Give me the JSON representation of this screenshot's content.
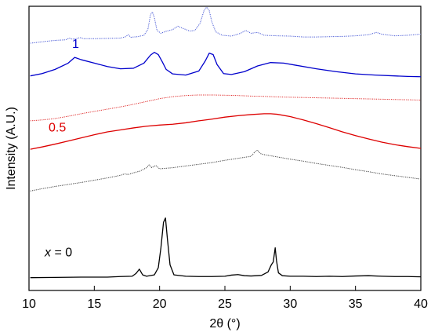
{
  "chart_data": {
    "type": "line",
    "title": "",
    "xlabel": "2θ (°)",
    "ylabel": "Intensity (A.U.)",
    "xlim": [
      10,
      40
    ],
    "x_ticks": [
      10,
      15,
      20,
      25,
      30,
      35,
      40
    ],
    "y_ticks_labeled": false,
    "grid": false,
    "legend": "none",
    "series": [
      {
        "color": "#4a5bd6",
        "style": "dotted",
        "points": [
          [
            10.1,
            0.87
          ],
          [
            11,
            0.875
          ],
          [
            12,
            0.88
          ],
          [
            12.8,
            0.882
          ],
          [
            13.1,
            0.888
          ],
          [
            13.3,
            0.884
          ],
          [
            13.6,
            0.886
          ],
          [
            13.9,
            0.89
          ],
          [
            14.2,
            0.886
          ],
          [
            15,
            0.886
          ],
          [
            16,
            0.887
          ],
          [
            17,
            0.888
          ],
          [
            17.4,
            0.893
          ],
          [
            17.6,
            0.9
          ],
          [
            17.8,
            0.891
          ],
          [
            18.3,
            0.893
          ],
          [
            18.8,
            0.898
          ],
          [
            19.1,
            0.918
          ],
          [
            19.3,
            0.97
          ],
          [
            19.45,
            0.98
          ],
          [
            19.6,
            0.96
          ],
          [
            19.8,
            0.915
          ],
          [
            20.1,
            0.905
          ],
          [
            20.5,
            0.912
          ],
          [
            21.0,
            0.918
          ],
          [
            21.4,
            0.93
          ],
          [
            21.8,
            0.922
          ],
          [
            22.3,
            0.913
          ],
          [
            22.7,
            0.915
          ],
          [
            23.1,
            0.94
          ],
          [
            23.4,
            0.985
          ],
          [
            23.6,
            0.997
          ],
          [
            23.8,
            0.985
          ],
          [
            24.0,
            0.945
          ],
          [
            24.3,
            0.91
          ],
          [
            24.8,
            0.898
          ],
          [
            25.5,
            0.895
          ],
          [
            26.2,
            0.905
          ],
          [
            26.6,
            0.915
          ],
          [
            27.0,
            0.905
          ],
          [
            27.5,
            0.908
          ],
          [
            28.0,
            0.898
          ],
          [
            29,
            0.896
          ],
          [
            30,
            0.895
          ],
          [
            31,
            0.892
          ],
          [
            32,
            0.892
          ],
          [
            33,
            0.893
          ],
          [
            34,
            0.894
          ],
          [
            35,
            0.896
          ],
          [
            36,
            0.9
          ],
          [
            36.6,
            0.908
          ],
          [
            37,
            0.902
          ],
          [
            38,
            0.896
          ],
          [
            39,
            0.898
          ],
          [
            40,
            0.902
          ]
        ]
      },
      {
        "color": "#0000cc",
        "style": "solid",
        "points": [
          [
            10.1,
            0.755
          ],
          [
            11,
            0.763
          ],
          [
            12,
            0.778
          ],
          [
            13,
            0.8
          ],
          [
            13.5,
            0.82
          ],
          [
            14,
            0.812
          ],
          [
            15,
            0.8
          ],
          [
            16,
            0.788
          ],
          [
            17,
            0.78
          ],
          [
            18,
            0.782
          ],
          [
            18.8,
            0.8
          ],
          [
            19.3,
            0.828
          ],
          [
            19.6,
            0.838
          ],
          [
            19.9,
            0.83
          ],
          [
            20.2,
            0.805
          ],
          [
            20.5,
            0.778
          ],
          [
            21,
            0.762
          ],
          [
            22,
            0.758
          ],
          [
            23,
            0.772
          ],
          [
            23.5,
            0.808
          ],
          [
            23.8,
            0.835
          ],
          [
            24.1,
            0.83
          ],
          [
            24.4,
            0.795
          ],
          [
            24.9,
            0.763
          ],
          [
            25.5,
            0.76
          ],
          [
            26.5,
            0.77
          ],
          [
            27.5,
            0.79
          ],
          [
            28.5,
            0.802
          ],
          [
            29.5,
            0.8
          ],
          [
            30.5,
            0.792
          ],
          [
            32,
            0.78
          ],
          [
            33.5,
            0.77
          ],
          [
            35,
            0.762
          ],
          [
            36.5,
            0.758
          ],
          [
            38,
            0.755
          ],
          [
            39,
            0.753
          ],
          [
            40,
            0.752
          ]
        ]
      },
      {
        "color": "#e03030",
        "style": "dotted",
        "points": [
          [
            10.1,
            0.597
          ],
          [
            11,
            0.6
          ],
          [
            12,
            0.605
          ],
          [
            13,
            0.613
          ],
          [
            14,
            0.622
          ],
          [
            15,
            0.63
          ],
          [
            16,
            0.638
          ],
          [
            17,
            0.646
          ],
          [
            18,
            0.655
          ],
          [
            19,
            0.665
          ],
          [
            20,
            0.675
          ],
          [
            21,
            0.682
          ],
          [
            22,
            0.686
          ],
          [
            23,
            0.688
          ],
          [
            24,
            0.688
          ],
          [
            25,
            0.687
          ],
          [
            26,
            0.686
          ],
          [
            27,
            0.684
          ],
          [
            28,
            0.683
          ],
          [
            29,
            0.681
          ],
          [
            30,
            0.68
          ],
          [
            31,
            0.679
          ],
          [
            32,
            0.678
          ],
          [
            33,
            0.677
          ],
          [
            34,
            0.676
          ],
          [
            35,
            0.675
          ],
          [
            36,
            0.674
          ],
          [
            37,
            0.673
          ],
          [
            38,
            0.672
          ],
          [
            39,
            0.671
          ],
          [
            40,
            0.67
          ]
        ]
      },
      {
        "color": "#dd0000",
        "style": "solid",
        "points": [
          [
            10.1,
            0.497
          ],
          [
            11,
            0.505
          ],
          [
            12,
            0.515
          ],
          [
            13,
            0.526
          ],
          [
            14,
            0.537
          ],
          [
            15,
            0.548
          ],
          [
            16,
            0.558
          ],
          [
            17,
            0.565
          ],
          [
            18,
            0.572
          ],
          [
            19,
            0.578
          ],
          [
            20,
            0.582
          ],
          [
            21,
            0.585
          ],
          [
            22,
            0.59
          ],
          [
            23,
            0.597
          ],
          [
            24,
            0.603
          ],
          [
            25,
            0.61
          ],
          [
            26,
            0.615
          ],
          [
            27,
            0.619
          ],
          [
            28,
            0.622
          ],
          [
            28.5,
            0.622
          ],
          [
            29,
            0.62
          ],
          [
            30,
            0.612
          ],
          [
            31,
            0.6
          ],
          [
            32,
            0.587
          ],
          [
            33,
            0.573
          ],
          [
            34,
            0.558
          ],
          [
            35,
            0.545
          ],
          [
            36,
            0.533
          ],
          [
            37,
            0.522
          ],
          [
            38,
            0.513
          ],
          [
            39,
            0.506
          ],
          [
            40,
            0.5
          ]
        ]
      },
      {
        "color": "#444444",
        "style": "dotted",
        "points": [
          [
            10.1,
            0.35
          ],
          [
            11,
            0.358
          ],
          [
            12,
            0.366
          ],
          [
            13,
            0.373
          ],
          [
            14,
            0.38
          ],
          [
            15,
            0.388
          ],
          [
            16,
            0.396
          ],
          [
            17,
            0.405
          ],
          [
            17.3,
            0.41
          ],
          [
            17.6,
            0.408
          ],
          [
            18,
            0.414
          ],
          [
            18.5,
            0.42
          ],
          [
            19.0,
            0.432
          ],
          [
            19.2,
            0.442
          ],
          [
            19.4,
            0.432
          ],
          [
            19.7,
            0.44
          ],
          [
            20,
            0.428
          ],
          [
            21,
            0.432
          ],
          [
            22,
            0.438
          ],
          [
            23,
            0.444
          ],
          [
            24,
            0.45
          ],
          [
            25,
            0.458
          ],
          [
            26,
            0.465
          ],
          [
            27,
            0.472
          ],
          [
            27.3,
            0.488
          ],
          [
            27.5,
            0.494
          ],
          [
            27.7,
            0.482
          ],
          [
            28,
            0.478
          ],
          [
            29,
            0.47
          ],
          [
            30,
            0.462
          ],
          [
            31,
            0.455
          ],
          [
            32,
            0.447
          ],
          [
            33,
            0.44
          ],
          [
            34,
            0.433
          ],
          [
            35,
            0.425
          ],
          [
            36,
            0.418
          ],
          [
            37,
            0.41
          ],
          [
            38,
            0.404
          ],
          [
            39,
            0.398
          ],
          [
            40,
            0.392
          ]
        ]
      },
      {
        "color": "#000000",
        "style": "solid",
        "points": [
          [
            10.1,
            0.045
          ],
          [
            12,
            0.046
          ],
          [
            14,
            0.047
          ],
          [
            16,
            0.047
          ],
          [
            17,
            0.049
          ],
          [
            17.9,
            0.05
          ],
          [
            18.2,
            0.06
          ],
          [
            18.45,
            0.075
          ],
          [
            18.7,
            0.055
          ],
          [
            19,
            0.05
          ],
          [
            19.6,
            0.055
          ],
          [
            19.9,
            0.08
          ],
          [
            20.1,
            0.15
          ],
          [
            20.3,
            0.24
          ],
          [
            20.45,
            0.255
          ],
          [
            20.6,
            0.18
          ],
          [
            20.8,
            0.09
          ],
          [
            21.1,
            0.055
          ],
          [
            22,
            0.05
          ],
          [
            23,
            0.049
          ],
          [
            24,
            0.049
          ],
          [
            25,
            0.05
          ],
          [
            25.5,
            0.054
          ],
          [
            26,
            0.056
          ],
          [
            26.5,
            0.052
          ],
          [
            27,
            0.051
          ],
          [
            27.8,
            0.053
          ],
          [
            28.3,
            0.065
          ],
          [
            28.55,
            0.09
          ],
          [
            28.7,
            0.1
          ],
          [
            28.85,
            0.15
          ],
          [
            28.95,
            0.105
          ],
          [
            29.1,
            0.062
          ],
          [
            29.4,
            0.052
          ],
          [
            30,
            0.05
          ],
          [
            31,
            0.05
          ],
          [
            32,
            0.049
          ],
          [
            33,
            0.05
          ],
          [
            34,
            0.049
          ],
          [
            35,
            0.051
          ],
          [
            36,
            0.052
          ],
          [
            37,
            0.05
          ],
          [
            38,
            0.049
          ],
          [
            39,
            0.049
          ],
          [
            40,
            0.048
          ]
        ]
      }
    ],
    "annotations": [
      {
        "text": "1",
        "x": 13.3,
        "y": 0.853,
        "color": "#0000cc",
        "italic": false
      },
      {
        "text": "0.5",
        "x": 11.5,
        "y": 0.56,
        "color": "#dd0000",
        "italic": false
      },
      {
        "text_var": "x",
        "text_rest": " = 0",
        "x": 11.2,
        "y": 0.12,
        "color": "#000000",
        "italic_var": true
      }
    ]
  }
}
